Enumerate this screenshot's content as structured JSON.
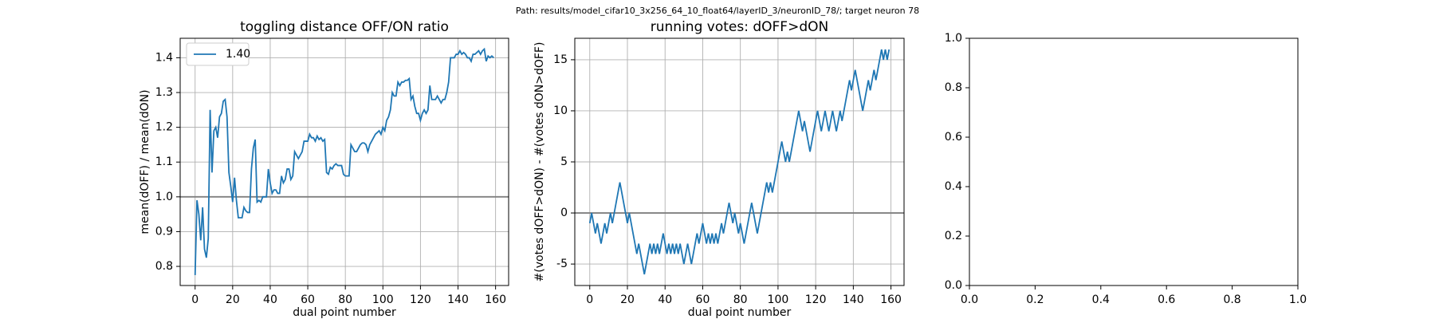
{
  "suptitle": "Path: results/model_cifar10_3x256_64_10_float64/layerID_3/neuronID_78/; target neuron 78",
  "chart_data": [
    {
      "type": "line",
      "title": "toggling distance OFF/ON ratio",
      "xlabel": "dual point number",
      "ylabel": "mean(dOFF) / mean(dON)",
      "xlim": [
        -7.95,
        166.95
      ],
      "ylim": [
        0.745,
        1.456
      ],
      "xticks": [
        0,
        20,
        40,
        60,
        80,
        100,
        120,
        140,
        160
      ],
      "yticks": [
        0.8,
        0.9,
        {
          "value": 1,
          "label": "1.0"
        },
        1.1,
        1.2,
        1.3,
        1.4
      ],
      "grid": true,
      "hline": 1,
      "legend": "upper left",
      "series": [
        {
          "name": "1.40",
          "color": "#1f77b4",
          "values": [
            0.775,
            0.99,
            0.95,
            0.875,
            0.97,
            0.85,
            0.825,
            0.88,
            1.25,
            1.07,
            1.19,
            1.2,
            1.17,
            1.23,
            1.24,
            1.275,
            1.28,
            1.23,
            1.07,
            1.03,
            0.985,
            1.055,
            0.99,
            0.94,
            0.94,
            0.94,
            0.97,
            0.96,
            0.955,
            0.955,
            1.08,
            1.14,
            1.165,
            0.985,
            0.99,
            0.985,
            1.0,
            1.0,
            1.0,
            1.08,
            1.04,
            1.01,
            1.02,
            1.02,
            1.01,
            1.01,
            1.06,
            1.04,
            1.05,
            1.08,
            1.08,
            1.05,
            1.06,
            1.13,
            1.12,
            1.11,
            1.12,
            1.13,
            1.16,
            1.16,
            1.16,
            1.18,
            1.17,
            1.17,
            1.16,
            1.175,
            1.165,
            1.17,
            1.16,
            1.165,
            1.07,
            1.065,
            1.085,
            1.08,
            1.09,
            1.095,
            1.09,
            1.09,
            1.09,
            1.065,
            1.06,
            1.06,
            1.06,
            1.15,
            1.14,
            1.13,
            1.13,
            1.14,
            1.15,
            1.155,
            1.155,
            1.15,
            1.13,
            1.15,
            1.16,
            1.17,
            1.18,
            1.185,
            1.19,
            1.18,
            1.2,
            1.19,
            1.22,
            1.23,
            1.25,
            1.3,
            1.29,
            1.29,
            1.33,
            1.32,
            1.33,
            1.33,
            1.335,
            1.335,
            1.34,
            1.28,
            1.29,
            1.26,
            1.24,
            1.24,
            1.22,
            1.24,
            1.25,
            1.24,
            1.25,
            1.32,
            1.28,
            1.28,
            1.28,
            1.29,
            1.28,
            1.27,
            1.28,
            1.28,
            1.3,
            1.33,
            1.4,
            1.4,
            1.4,
            1.41,
            1.41,
            1.42,
            1.41,
            1.415,
            1.41,
            1.4,
            1.4,
            1.39,
            1.41,
            1.41,
            1.415,
            1.42,
            1.41,
            1.42,
            1.425,
            1.39,
            1.405,
            1.4,
            1.405,
            1.4
          ]
        }
      ]
    },
    {
      "type": "line",
      "title": "running votes: dOFF>dON",
      "xlabel": "dual point number",
      "ylabel": "#(votes dOFF>dON) - #(votes dON>dOFF)",
      "xlim": [
        -7.95,
        166.95
      ],
      "ylim": [
        -7.1,
        17.1
      ],
      "xticks": [
        0,
        20,
        40,
        60,
        80,
        100,
        120,
        140,
        160
      ],
      "yticks": [
        -5,
        0,
        5,
        10,
        15
      ],
      "grid": true,
      "hline": 0,
      "series": [
        {
          "color": "#1f77b4",
          "values": [
            -1,
            0,
            -1,
            -2,
            -1,
            -2,
            -3,
            -2,
            -1,
            -2,
            -1,
            0,
            -1,
            0,
            1,
            2,
            3,
            2,
            1,
            0,
            -1,
            0,
            -1,
            -2,
            -3,
            -4,
            -3,
            -4,
            -5,
            -6,
            -5,
            -4,
            -3,
            -4,
            -3,
            -4,
            -3,
            -4,
            -3,
            -2,
            -3,
            -4,
            -3,
            -4,
            -3,
            -4,
            -3,
            -4,
            -3,
            -4,
            -5,
            -4,
            -3,
            -4,
            -5,
            -4,
            -3,
            -2,
            -3,
            -2,
            -1,
            -2,
            -3,
            -2,
            -3,
            -2,
            -3,
            -2,
            -3,
            -2,
            -1,
            -2,
            -1,
            0,
            1,
            0,
            -1,
            0,
            -1,
            -2,
            -1,
            -2,
            -3,
            -2,
            -1,
            0,
            1,
            0,
            -1,
            -2,
            -1,
            0,
            1,
            2,
            3,
            2,
            3,
            2,
            3,
            4,
            5,
            6,
            7,
            6,
            5,
            6,
            5,
            6,
            7,
            8,
            9,
            10,
            9,
            8,
            9,
            8,
            7,
            6,
            7,
            8,
            9,
            10,
            9,
            8,
            9,
            10,
            9,
            8,
            9,
            10,
            9,
            8,
            9,
            10,
            9,
            10,
            11,
            12,
            13,
            12,
            13,
            14,
            13,
            12,
            11,
            10,
            11,
            12,
            13,
            12,
            13,
            14,
            13,
            14,
            15,
            16,
            15,
            16,
            15,
            16
          ]
        }
      ]
    },
    {
      "type": "empty",
      "xlim": [
        0,
        1
      ],
      "ylim": [
        0,
        1
      ],
      "xticks": [
        {
          "value": 0,
          "label": "0.0"
        },
        0.2,
        0.4,
        0.6,
        0.8,
        {
          "value": 1,
          "label": "1.0"
        }
      ],
      "yticks": [
        {
          "value": 0,
          "label": "0.0"
        },
        0.2,
        0.4,
        0.6,
        0.8,
        {
          "value": 1,
          "label": "1.0"
        }
      ]
    }
  ]
}
